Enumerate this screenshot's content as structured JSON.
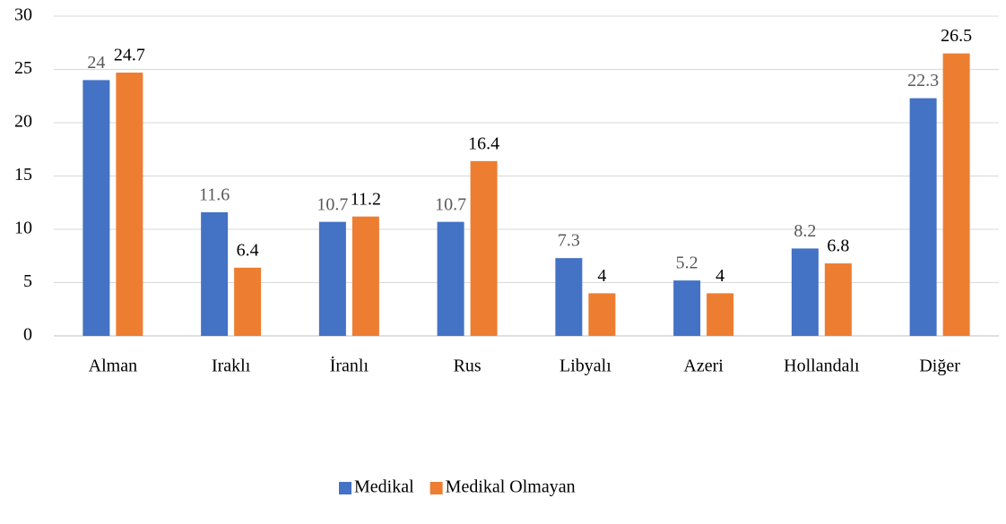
{
  "chart_data": {
    "type": "bar",
    "categories": [
      "Alman",
      "Iraklı",
      "İranlı",
      "Rus",
      "Libyalı",
      "Azeri",
      "Hollandalı",
      "Diğer"
    ],
    "series": [
      {
        "name": "Medikal",
        "color": "#4472c4",
        "values": [
          24,
          11.6,
          10.7,
          10.7,
          7.3,
          5.2,
          8.2,
          22.3
        ]
      },
      {
        "name": "Medikal Olmayan",
        "color": "#ed7d31",
        "values": [
          24.7,
          6.4,
          11.2,
          16.4,
          4,
          4,
          6.8,
          26.5
        ]
      }
    ],
    "ylim": [
      0,
      30
    ],
    "yticks": [
      0,
      5,
      10,
      15,
      20,
      25,
      30
    ],
    "grid": true,
    "legend": "bottom"
  }
}
